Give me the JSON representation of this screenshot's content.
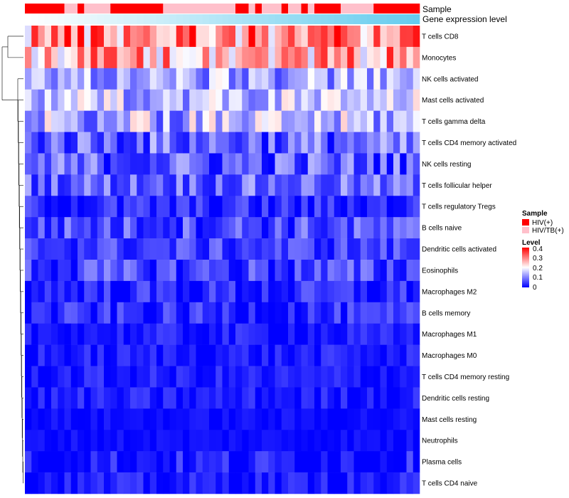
{
  "chart_data": {
    "type": "heatmap",
    "title": "",
    "annotations": [
      {
        "name": "Sample",
        "type": "categorical"
      },
      {
        "name": "Gene expression level",
        "type": "continuous"
      }
    ],
    "sample_groups": [
      "HIV(+)",
      "HIV/TB(+)"
    ],
    "sample_group_colors": [
      "#ff0000",
      "#ffc0cb"
    ],
    "samples_group_index": [
      0,
      0,
      0,
      0,
      0,
      0,
      1,
      1,
      0,
      1,
      1,
      1,
      1,
      0,
      0,
      0,
      0,
      0,
      0,
      0,
      0,
      1,
      1,
      1,
      1,
      1,
      1,
      1,
      1,
      1,
      1,
      1,
      0,
      0,
      1,
      0,
      1,
      1,
      1,
      0,
      1,
      1,
      0,
      1,
      0,
      0,
      0,
      0,
      1,
      1,
      1,
      1,
      1,
      0,
      0,
      0,
      0,
      0,
      0,
      0
    ],
    "gene_expression_gradient": [
      "#ffffff",
      "#66ccee"
    ],
    "rows": [
      "T cells CD8",
      "Monocytes",
      "NK cells activated",
      "Mast cells activated",
      "T cells gamma delta",
      "T cells CD4 memory activated",
      "NK cells resting",
      "T cells follicular helper",
      "T cells regulatory  Tregs",
      "B cells naive",
      "Dendritic cells activated",
      "Eosinophils",
      "Macrophages M2",
      "B cells memory",
      "Macrophages M1",
      "Macrophages M0",
      "T cells CD4 memory resting",
      "Dendritic cells resting",
      "Mast cells resting",
      "Neutrophils",
      "Plasma cells",
      "T cells CD4 naive"
    ],
    "n_columns": 60,
    "row_mean_levels": [
      0.3,
      0.27,
      0.13,
      0.15,
      0.14,
      0.08,
      0.07,
      0.08,
      0.03,
      0.06,
      0.05,
      0.05,
      0.03,
      0.03,
      0.02,
      0.02,
      0.02,
      0.02,
      0.01,
      0.01,
      0.02,
      0.02
    ],
    "row_spread": [
      0.08,
      0.07,
      0.05,
      0.05,
      0.06,
      0.05,
      0.05,
      0.04,
      0.03,
      0.04,
      0.03,
      0.04,
      0.03,
      0.03,
      0.02,
      0.02,
      0.02,
      0.02,
      0.01,
      0.01,
      0.03,
      0.02
    ],
    "color_scale": {
      "min": 0,
      "mid": 0.2,
      "max": 0.4,
      "low": "#0000ff",
      "mid_color": "#ffffff",
      "high": "#ff0000"
    },
    "legend": {
      "sample_title": "Sample",
      "level_title": "Level",
      "level_ticks": [
        "0.4",
        "0.3",
        "0.2",
        "0.1",
        "0"
      ],
      "position": "right"
    },
    "dendrogram": "rows"
  },
  "colors": {
    "hiv": "#ff0000",
    "hivtb": "#ffc0cb",
    "gel": "#66ccee"
  }
}
